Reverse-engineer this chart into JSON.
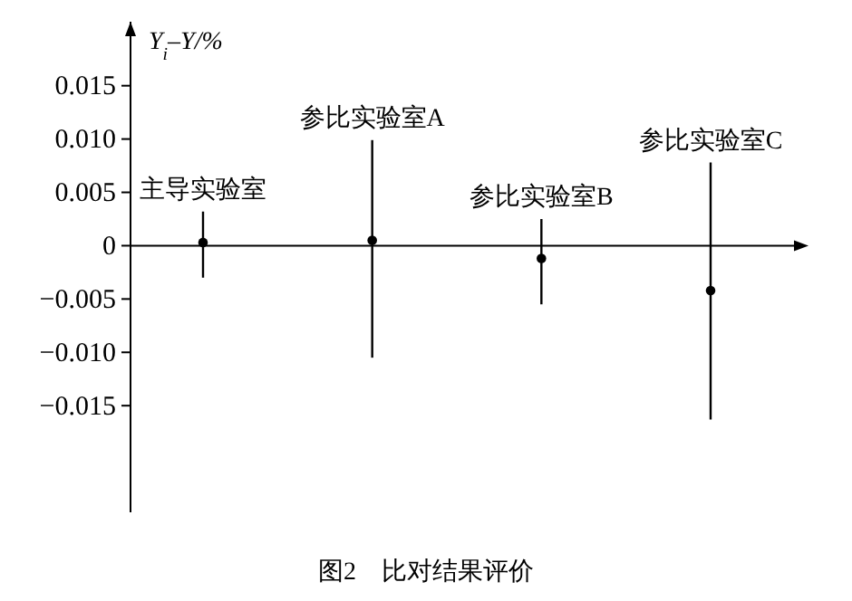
{
  "chart_data": {
    "type": "scatter",
    "title": "图2　比对结果评价",
    "ylabel": "Y$_{i}$–Y/%",
    "categories": [
      "主导实验室",
      "参比实验室A",
      "参比实验室B",
      "参比实验室C"
    ],
    "values": [
      0.0003,
      0.0005,
      -0.0012,
      -0.0042
    ],
    "errors": [
      [
        -0.003,
        0.0032
      ],
      [
        -0.0105,
        0.0099
      ],
      [
        -0.0055,
        0.0025
      ],
      [
        -0.0163,
        0.0078
      ]
    ],
    "color": "#000000",
    "marker": "circle",
    "ylim": [
      -0.025,
      0.021
    ],
    "yticks": [
      {
        "value": -0.015,
        "label": "−0.015"
      },
      {
        "value": -0.01,
        "label": "−0.010"
      },
      {
        "value": -0.005,
        "label": "−0.005"
      },
      {
        "value": 0,
        "label": "0"
      },
      {
        "value": 0.005,
        "label": "0.005"
      },
      {
        "value": 0.01,
        "label": "0.010"
      },
      {
        "value": 0.015,
        "label": "0.015"
      }
    ]
  }
}
